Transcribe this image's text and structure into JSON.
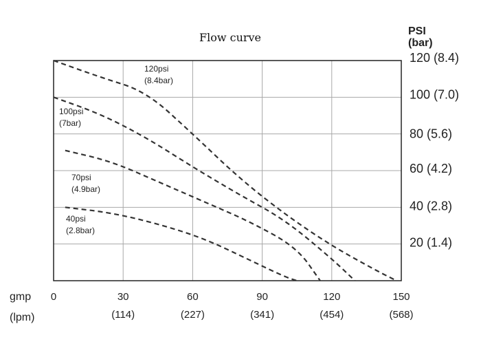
{
  "chart_data": {
    "type": "line",
    "title": "Flow curve",
    "ylabel": [
      "PSI",
      "(bar)"
    ],
    "xlabel": [
      "gmp",
      "(lpm)"
    ],
    "xlim": [
      0,
      150
    ],
    "ylim": [
      0,
      120
    ],
    "grid": true,
    "y_ticks": [
      {
        "value": 120,
        "label": "120 (8.4)"
      },
      {
        "value": 100,
        "label": "100 (7.0)"
      },
      {
        "value": 80,
        "label": "80  (5.6)"
      },
      {
        "value": 60,
        "label": "60 (4.2)"
      },
      {
        "value": 40,
        "label": "40 (2.8)"
      },
      {
        "value": 20,
        "label": "20 (1.4)"
      }
    ],
    "x_ticks": [
      {
        "value": 0,
        "label": "0",
        "sub": ""
      },
      {
        "value": 30,
        "label": "30",
        "sub": "(114)"
      },
      {
        "value": 60,
        "label": "60",
        "sub": "(227)"
      },
      {
        "value": 90,
        "label": "90",
        "sub": "(341)"
      },
      {
        "value": 120,
        "label": "120",
        "sub": "(454)"
      },
      {
        "value": 150,
        "label": "150",
        "sub": "(568)"
      }
    ],
    "series": [
      {
        "label_lines": [
          "120psi",
          "(8.4bar)"
        ],
        "x": [
          0,
          20,
          40,
          60,
          80,
          100,
          120,
          140,
          148
        ],
        "y": [
          120,
          111,
          103,
          80,
          56,
          36,
          19,
          5,
          0
        ]
      },
      {
        "label_lines": [
          "100psi",
          "(7bar)"
        ],
        "x": [
          0,
          20,
          40,
          60,
          80,
          100,
          120,
          130
        ],
        "y": [
          100,
          91,
          78,
          62,
          47,
          33,
          12,
          0
        ]
      },
      {
        "label_lines": [
          "70psi",
          "(4.9bar)"
        ],
        "x": [
          5,
          25,
          45,
          65,
          85,
          105,
          115
        ],
        "y": [
          71,
          65,
          54,
          43,
          32,
          18,
          0
        ]
      },
      {
        "label_lines": [
          "40psi",
          "(2.8bar)"
        ],
        "x": [
          5,
          25,
          45,
          65,
          85,
          100,
          105
        ],
        "y": [
          40,
          37,
          31,
          23,
          11,
          2,
          0
        ]
      }
    ]
  }
}
